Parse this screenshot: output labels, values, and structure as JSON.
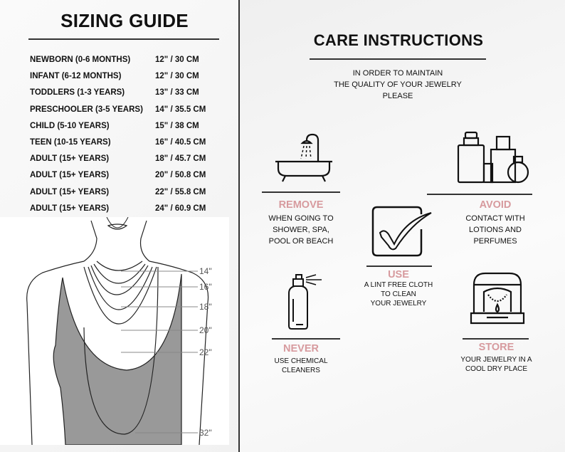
{
  "sizing": {
    "title": "SIZING GUIDE",
    "rows": [
      {
        "label": "NEWBORN (0-6 MONTHS)",
        "value": "12\" / 30 CM"
      },
      {
        "label": "INFANT (6-12 MONTHS)",
        "value": "12\" / 30 CM"
      },
      {
        "label": "TODDLERS (1-3 YEARS)",
        "value": "13\" / 33 CM"
      },
      {
        "label": "PRESCHOOLER (3-5 YEARS)",
        "value": "14\" / 35.5 CM"
      },
      {
        "label": "CHILD (5-10 YEARS)",
        "value": "15\" / 38 CM"
      },
      {
        "label": "TEEN (10-15 YEARS)",
        "value": "16\" / 40.5 CM"
      },
      {
        "label": "ADULT (15+ YEARS)",
        "value": "18\" / 45.7 CM"
      },
      {
        "label": "ADULT (15+ YEARS)",
        "value": "20\" / 50.8 CM"
      },
      {
        "label": "ADULT (15+ YEARS)",
        "value": "22\" / 55.8 CM"
      },
      {
        "label": "ADULT (15+ YEARS)",
        "value": "24\" / 60.9 CM"
      }
    ],
    "lengths": [
      "14\"",
      "16\"",
      "18\"",
      "20\"",
      "22\"",
      "32\""
    ]
  },
  "care": {
    "title": "CARE INSTRUCTIONS",
    "intro": [
      "IN ORDER TO MAINTAIN",
      "THE QUALITY OF YOUR JEWELRY",
      "PLEASE"
    ],
    "accent": "#d79a9e",
    "items": [
      {
        "icon": "bathtub-icon",
        "heading": "REMOVE",
        "lines": [
          "WHEN GOING TO",
          "SHOWER, SPA,",
          "POOL OR BEACH"
        ]
      },
      {
        "icon": "checkbox-icon",
        "heading": "USE",
        "lines": [
          "A LINT FREE CLOTH",
          "TO CLEAN",
          "YOUR JEWELRY"
        ]
      },
      {
        "icon": "perfume-icon",
        "heading": "AVOID",
        "lines": [
          "CONTACT WITH",
          "LOTIONS AND",
          "PERFUMES"
        ]
      },
      {
        "icon": "spray-bottle-icon",
        "heading": "NEVER",
        "lines": [
          "USE CHEMICAL",
          "CLEANERS"
        ]
      },
      {
        "icon": "jewelry-box-icon",
        "heading": "STORE",
        "lines": [
          "YOUR JEWELRY IN A",
          "COOL DRY PLACE"
        ]
      }
    ]
  }
}
